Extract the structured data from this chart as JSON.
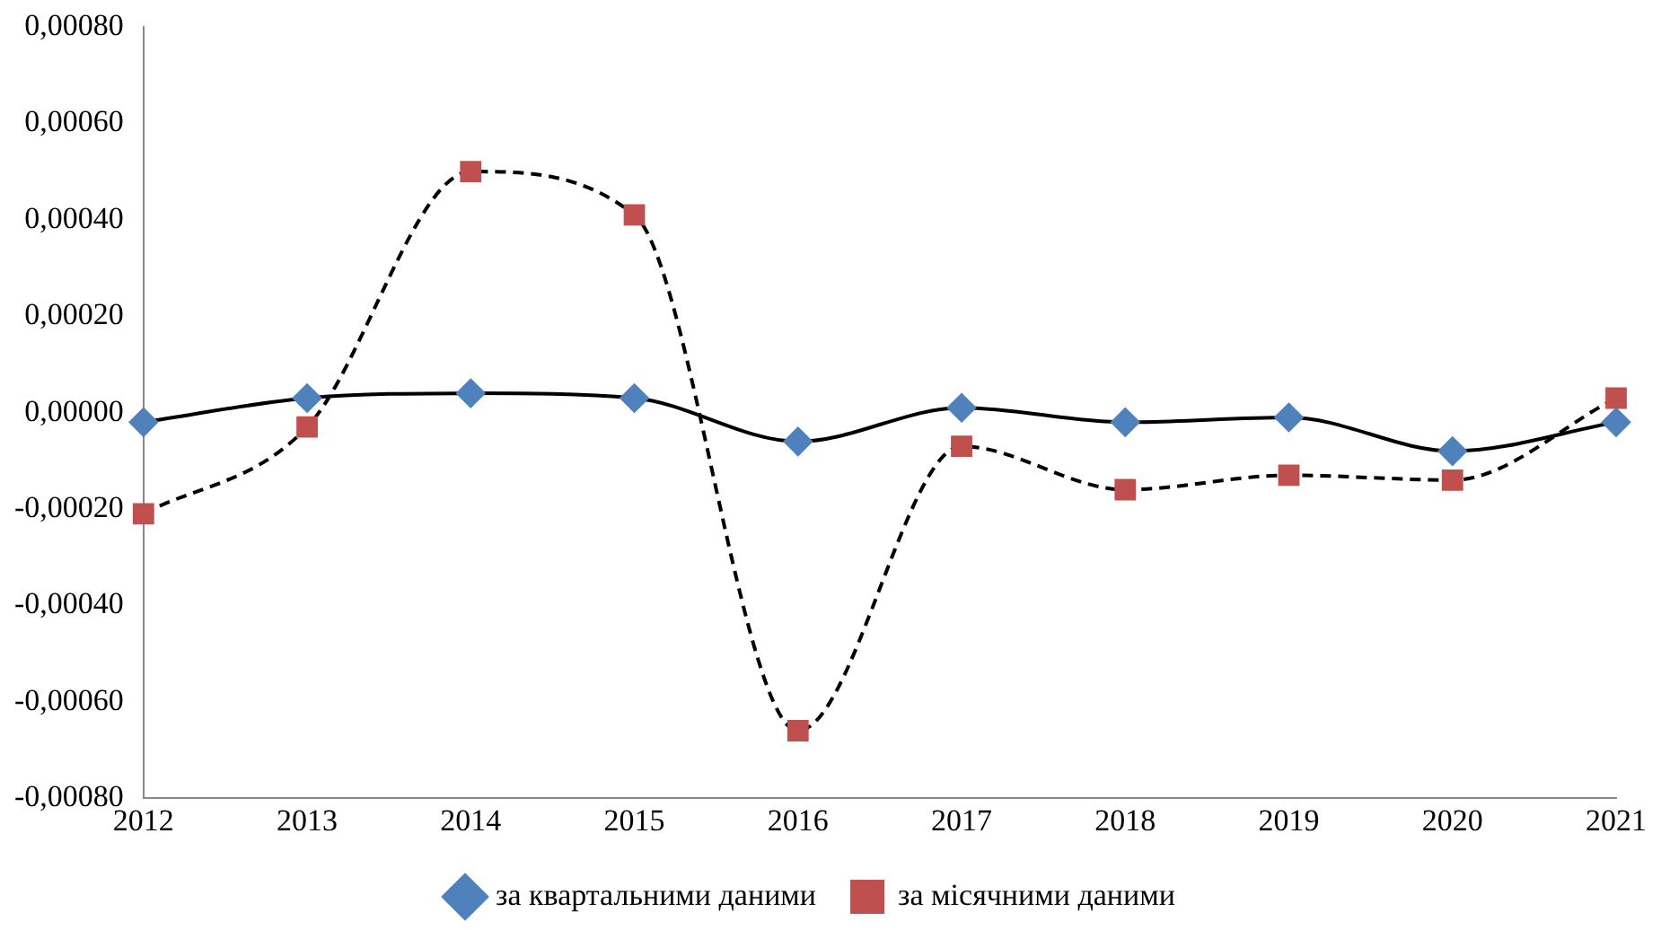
{
  "chart_data": {
    "type": "line",
    "categories": [
      "2012",
      "2013",
      "2014",
      "2015",
      "2016",
      "2017",
      "2018",
      "2019",
      "2020",
      "2021"
    ],
    "series": [
      {
        "name": "за квартальними даними",
        "color": "#4f81bd",
        "marker": "diamond",
        "line_style": "solid",
        "values": [
          -2e-05,
          3e-05,
          4e-05,
          3e-05,
          -6e-05,
          1e-05,
          -2e-05,
          -1e-05,
          -8e-05,
          -2e-05
        ]
      },
      {
        "name": "за місячними даними",
        "color": "#c0504d",
        "marker": "square",
        "line_style": "dashed",
        "values": [
          -0.00021,
          -3e-05,
          0.0005,
          0.00041,
          -0.00066,
          -7e-05,
          -0.00016,
          -0.00013,
          -0.00014,
          3e-05
        ]
      }
    ],
    "ylim": [
      -0.0008,
      0.0008
    ],
    "yticks": [
      {
        "value": -0.0008,
        "label": "-0,00080"
      },
      {
        "value": -0.0006,
        "label": "-0,00060"
      },
      {
        "value": -0.0004,
        "label": "-0,00040"
      },
      {
        "value": -0.0002,
        "label": "-0,00020"
      },
      {
        "value": 0,
        "label": "0,00000"
      },
      {
        "value": 0.0002,
        "label": "0,00020"
      },
      {
        "value": 0.0004,
        "label": "0,00040"
      },
      {
        "value": 0.0006,
        "label": "0,00060"
      },
      {
        "value": 0.0008,
        "label": "0,00080"
      }
    ],
    "grid": false,
    "legend": "bottom"
  }
}
